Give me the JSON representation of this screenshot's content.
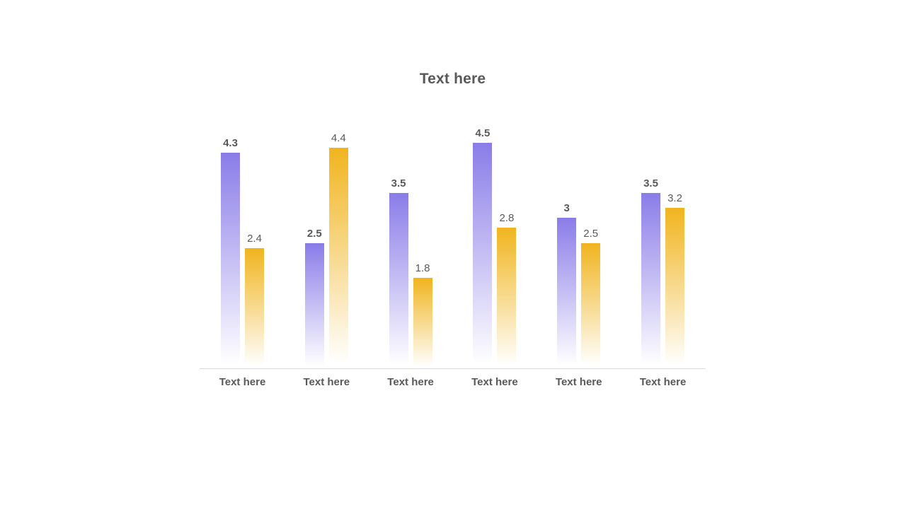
{
  "slide": {
    "background_color": "#ffffff",
    "text_color": "#595959"
  },
  "chart_data": {
    "type": "bar",
    "title": "Text here",
    "categories": [
      "Text here",
      "Text here",
      "Text here",
      "Text here",
      "Text here",
      "Text here"
    ],
    "series": [
      {
        "name": "series-1-purple",
        "color": "#8a7ce8",
        "label_style": "bold",
        "values": [
          4.3,
          2.5,
          3.5,
          4.5,
          3,
          3.5
        ]
      },
      {
        "name": "series-2-gold",
        "color": "#f0b41e",
        "label_style": "regular",
        "values": [
          2.4,
          4.4,
          1.8,
          2.8,
          2.5,
          3.2
        ]
      }
    ],
    "value_labels_shown": true,
    "legend": "none",
    "gridlines": false,
    "ylim": [
      0,
      4.5
    ],
    "bar_gradient_fade_to": "#ffffff",
    "baseline_color": "#d9d9d9",
    "xlabel": "",
    "ylabel": ""
  }
}
